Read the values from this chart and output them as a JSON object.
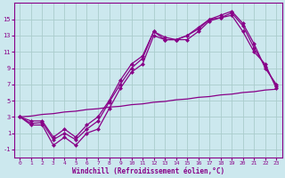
{
  "xlabel": "Windchill (Refroidissement éolien,°C)",
  "bg_color": "#cce8ee",
  "grid_color": "#aacccc",
  "line_color": "#880088",
  "line1_x": [
    0,
    1,
    2,
    3,
    4,
    5,
    6,
    7,
    8,
    9,
    10,
    11,
    12,
    13,
    14,
    15,
    16,
    17,
    18,
    19,
    20,
    21,
    22,
    23
  ],
  "line1_y": [
    3,
    2,
    2,
    -0.5,
    0.5,
    -0.5,
    1,
    1.5,
    4,
    6.5,
    8.5,
    9.5,
    13,
    12.5,
    12.5,
    12.5,
    13.5,
    14.8,
    15.2,
    15.5,
    13.5,
    11,
    9.5,
    6.5
  ],
  "line2_x": [
    0,
    1,
    2,
    3,
    4,
    5,
    6,
    7,
    8,
    9,
    10,
    11,
    12,
    13,
    14,
    15,
    16,
    17,
    18,
    19,
    20,
    21,
    22,
    23
  ],
  "line2_y": [
    3,
    2.2,
    2.3,
    0.2,
    1.0,
    0.2,
    1.5,
    2.5,
    4.8,
    7.0,
    9.0,
    10.2,
    13.5,
    12.8,
    12.5,
    13.0,
    13.8,
    15.0,
    15.2,
    15.8,
    14.2,
    11.5,
    9.2,
    6.8
  ],
  "line3_x": [
    0,
    1,
    2,
    3,
    4,
    5,
    6,
    7,
    8,
    9,
    10,
    11,
    12,
    13,
    14,
    15,
    16,
    17,
    18,
    19,
    20,
    21,
    22,
    23
  ],
  "line3_y": [
    3,
    2.5,
    2.5,
    0.5,
    1.5,
    0.5,
    2.0,
    3.0,
    5.0,
    7.5,
    9.5,
    10.5,
    13.5,
    12.5,
    12.5,
    13.0,
    14.0,
    15.0,
    15.5,
    16.0,
    14.5,
    12.0,
    9.0,
    7.0
  ],
  "line4_x": [
    0,
    1,
    2,
    3,
    4,
    5,
    6,
    7,
    8,
    9,
    10,
    11,
    12,
    13,
    14,
    15,
    16,
    17,
    18,
    19,
    20,
    21,
    22,
    23
  ],
  "line4_y": [
    3.0,
    3.1,
    3.3,
    3.4,
    3.6,
    3.7,
    3.9,
    4.0,
    4.2,
    4.3,
    4.5,
    4.6,
    4.8,
    4.9,
    5.1,
    5.2,
    5.4,
    5.5,
    5.7,
    5.8,
    6.0,
    6.1,
    6.3,
    6.4
  ],
  "xlim": [
    -0.5,
    23.5
  ],
  "ylim": [
    -2.0,
    17.0
  ],
  "yticks": [
    -1,
    1,
    3,
    5,
    7,
    9,
    11,
    13,
    15
  ],
  "xticks": [
    0,
    1,
    2,
    3,
    4,
    5,
    6,
    7,
    8,
    9,
    10,
    11,
    12,
    13,
    14,
    15,
    16,
    17,
    18,
    19,
    20,
    21,
    22,
    23
  ],
  "marker": "D",
  "markersize": 2.5,
  "linewidth": 0.9
}
